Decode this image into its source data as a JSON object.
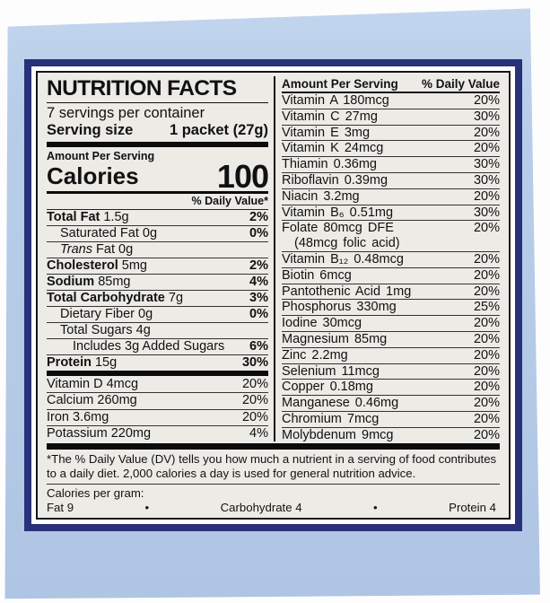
{
  "colors": {
    "navy": "#293179",
    "paper": "#edebe6",
    "box_blue": "#b6cce8"
  },
  "panel": {
    "title": "NUTRITION FACTS",
    "servings_per_container": "7 servings per container",
    "serving_size_label": "Serving size",
    "serving_size_value": "1 packet (27g)",
    "amount_per_serving": "Amount Per Serving",
    "calories_label": "Calories",
    "calories_value": "100",
    "daily_value_header": "% Daily Value*",
    "main_rows": [
      {
        "b": "Total Fat",
        "r": " 1.5g",
        "pct": "2%"
      },
      {
        "r": "Saturated Fat 0g",
        "pct": "0%",
        "ind": 1
      },
      {
        "it": "Trans",
        "r": " Fat 0g",
        "ind": 1
      },
      {
        "b": "Cholesterol",
        "r": " 5mg",
        "pct": "2%"
      },
      {
        "b": "Sodium",
        "r": " 85mg",
        "pct": "4%"
      },
      {
        "b": "Total Carbohydrate",
        "r": " 7g",
        "pct": "3%"
      },
      {
        "r": "Dietary Fiber 0g",
        "pct": "0%",
        "ind": 1
      },
      {
        "r": "Total Sugars 4g",
        "ind": 1
      },
      {
        "r": "Includes 3g Added Sugars",
        "pct": "6%",
        "ind": 2
      },
      {
        "b": "Protein",
        "r": " 15g",
        "pct": "30%"
      }
    ],
    "vitamin_rows": [
      {
        "name": "Vitamin D 4mcg",
        "pct": "20%"
      },
      {
        "name": "Calcium 260mg",
        "pct": "20%"
      },
      {
        "name": "Iron 3.6mg",
        "pct": "20%"
      },
      {
        "name": "Potassium 220mg",
        "pct": "4%"
      }
    ]
  },
  "right": {
    "amount_header": "Amount Per Serving",
    "dv_header": "% Daily Value",
    "rows": [
      {
        "name": "Vitamin A 180mcg",
        "pct": "20%"
      },
      {
        "name": "Vitamin C 27mg",
        "pct": "30%"
      },
      {
        "name": "Vitamin E 3mg",
        "pct": "20%"
      },
      {
        "name": "Vitamin K 24mcg",
        "pct": "20%"
      },
      {
        "name": "Thiamin 0.36mg",
        "pct": "30%"
      },
      {
        "name": "Riboflavin 0.39mg",
        "pct": "30%"
      },
      {
        "name": "Niacin 3.2mg",
        "pct": "20%"
      },
      {
        "name": "Vitamin B₆ 0.51mg",
        "pct": "30%"
      },
      {
        "name": "Folate 80mcg DFE",
        "pct": "20%",
        "sub": "(48mcg folic acid)"
      },
      {
        "name": "Vitamin B₁₂ 0.48mcg",
        "pct": "20%"
      },
      {
        "name": "Biotin 6mcg",
        "pct": "20%"
      },
      {
        "name": "Pantothenic Acid 1mg",
        "pct": "20%"
      },
      {
        "name": "Phosphorus 330mg",
        "pct": "25%"
      },
      {
        "name": "Iodine 30mcg",
        "pct": "20%"
      },
      {
        "name": "Magnesium 85mg",
        "pct": "20%"
      },
      {
        "name": "Zinc 2.2mg",
        "pct": "20%"
      },
      {
        "name": "Selenium 11mcg",
        "pct": "20%"
      },
      {
        "name": "Copper 0.18mg",
        "pct": "20%"
      },
      {
        "name": "Manganese 0.46mg",
        "pct": "20%"
      },
      {
        "name": "Chromium 7mcg",
        "pct": "20%"
      },
      {
        "name": "Molybdenum 9mcg",
        "pct": "20%"
      }
    ]
  },
  "footer": {
    "footnote": "*The % Daily Value (DV) tells you how much a nutrient in a serving of food contributes to a daily diet. 2,000 calories a day is used for general nutrition advice.",
    "calories_per_gram_label": "Calories per gram:",
    "items": [
      {
        "t": "Fat 9"
      },
      {
        "t": "•"
      },
      {
        "t": "Carbohydrate 4"
      },
      {
        "t": "•"
      },
      {
        "t": "Protein 4"
      }
    ]
  }
}
